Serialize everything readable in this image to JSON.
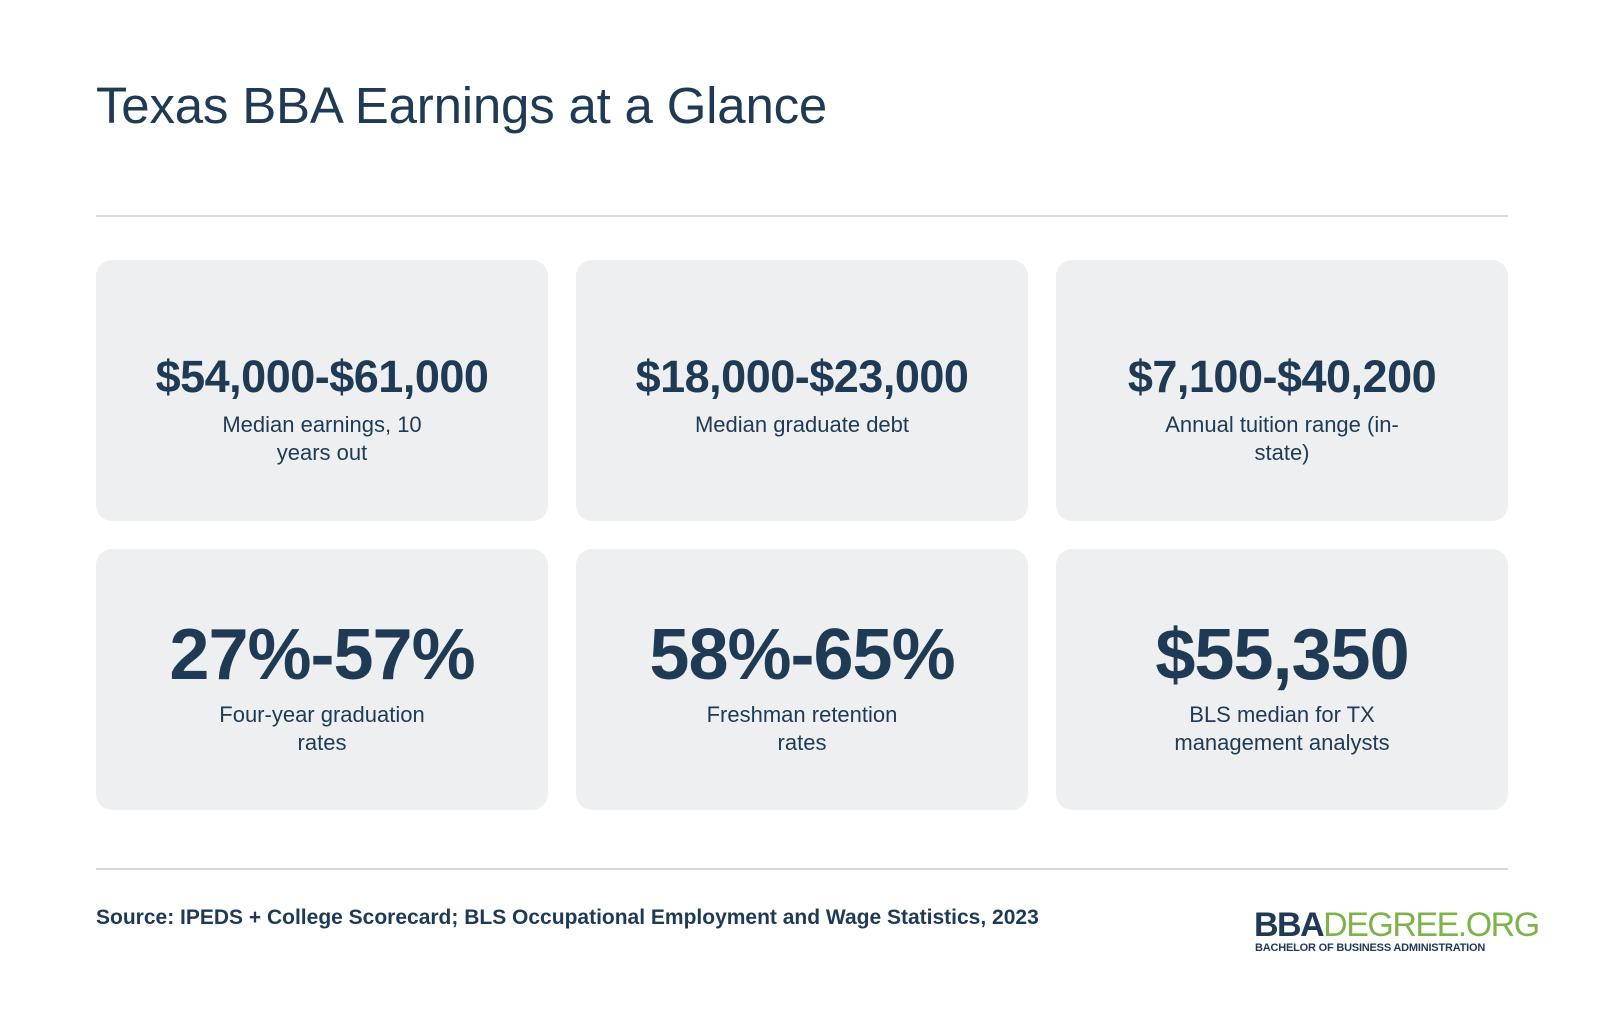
{
  "title": "Texas BBA Earnings at a Glance",
  "stats": [
    {
      "value": "$54,000-$61,000",
      "label": "Median earnings, 10 years out"
    },
    {
      "value": "$18,000-$23,000",
      "label": "Median graduate debt"
    },
    {
      "value": "$7,100-$40,200",
      "label": "Annual tuition range (in-state)"
    },
    {
      "value": "27%-57%",
      "label": "Four-year graduation rates"
    },
    {
      "value": "58%-65%",
      "label": "Freshman retention rates"
    },
    {
      "value": "$55,350",
      "label": "BLS median for TX management analysts"
    }
  ],
  "source": "Source: IPEDS + College Scorecard; BLS Occupational Employment and Wage Statistics, 2023",
  "logo": {
    "primary": "BBA",
    "secondary": "DEGREE.ORG",
    "tagline": "BACHELOR OF BUSINESS ADMINISTRATION"
  },
  "colors": {
    "text": "#1e3a54",
    "card_background": "#eeeff0",
    "divider": "#d6d8db",
    "logo_accent": "#7db34a"
  }
}
